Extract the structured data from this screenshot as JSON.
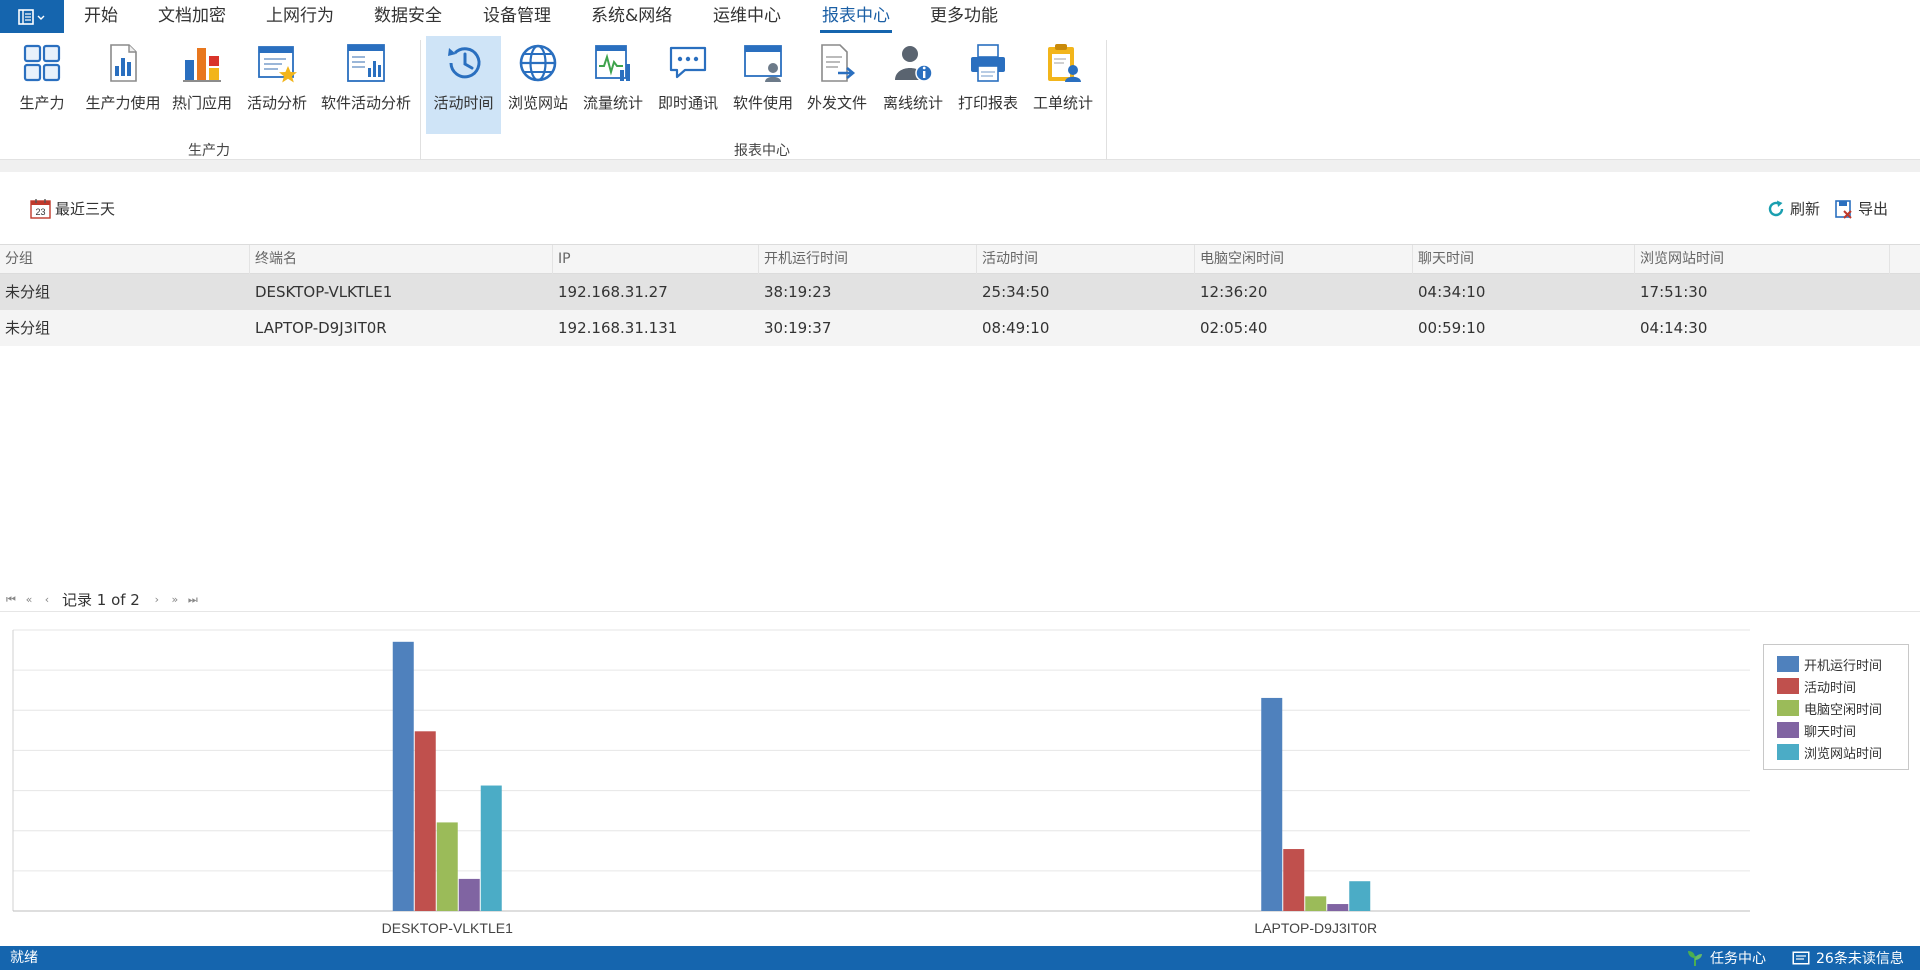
{
  "menu": {
    "tabs": [
      {
        "label": "开始"
      },
      {
        "label": "文档加密"
      },
      {
        "label": "上网行为"
      },
      {
        "label": "数据安全"
      },
      {
        "label": "设备管理"
      },
      {
        "label": "系统&网络"
      },
      {
        "label": "运维中心"
      },
      {
        "label": "报表中心"
      },
      {
        "label": "更多功能"
      }
    ],
    "active_tab": "报表中心"
  },
  "ribbon": {
    "groups": [
      {
        "label": "生产力"
      },
      {
        "label": "报表中心"
      }
    ],
    "buttons": [
      {
        "label": "生产力",
        "icon": "productivity-grid-icon"
      },
      {
        "label": "生产力使用",
        "icon": "productivity-usage-icon"
      },
      {
        "label": "热门应用",
        "icon": "popular-apps-icon"
      },
      {
        "label": "活动分析",
        "icon": "activity-analysis-icon"
      },
      {
        "label": "软件活动分析",
        "icon": "software-activity-icon"
      },
      {
        "label": "活动时间",
        "icon": "activity-time-icon"
      },
      {
        "label": "浏览网站",
        "icon": "globe-icon"
      },
      {
        "label": "流量统计",
        "icon": "traffic-stats-icon"
      },
      {
        "label": "即时通讯",
        "icon": "chat-icon"
      },
      {
        "label": "软件使用",
        "icon": "software-usage-icon"
      },
      {
        "label": "外发文件",
        "icon": "outgoing-file-icon"
      },
      {
        "label": "离线统计",
        "icon": "offline-user-icon"
      },
      {
        "label": "打印报表",
        "icon": "printer-icon"
      },
      {
        "label": "工单统计",
        "icon": "work-order-icon"
      }
    ],
    "active_button": "活动时间"
  },
  "toolbar": {
    "date_range": "最近三天",
    "calendar_day": "23",
    "refresh_label": "刷新",
    "export_label": "导出"
  },
  "table": {
    "columns": [
      "分组",
      "终端名",
      "IP",
      "开机运行时间",
      "活动时间",
      "电脑空闲时间",
      "聊天时间",
      "浏览网站时间"
    ],
    "rows": [
      [
        "未分组",
        "DESKTOP-VLKTLE1",
        "192.168.31.27",
        "38:19:23",
        "25:34:50",
        "12:36:20",
        "04:34:10",
        "17:51:30"
      ],
      [
        "未分组",
        "LAPTOP-D9J3IT0R",
        "192.168.31.131",
        "30:19:37",
        "08:49:10",
        "02:05:40",
        "00:59:10",
        "04:14:30"
      ]
    ]
  },
  "pager": {
    "text": "记录 1 of 2"
  },
  "chart_data": {
    "type": "bar",
    "categories": [
      "DESKTOP-VLKTLE1",
      "LAPTOP-D9J3IT0R"
    ],
    "series": [
      {
        "name": "开机运行时间",
        "color": "#4f81bd",
        "values": [
          38.32,
          30.33
        ]
      },
      {
        "name": "活动时间",
        "color": "#c0504d",
        "values": [
          25.58,
          8.82
        ]
      },
      {
        "name": "电脑空闲时间",
        "color": "#9bbb59",
        "values": [
          12.61,
          2.09
        ]
      },
      {
        "name": "聊天时间",
        "color": "#8064a2",
        "values": [
          4.57,
          0.99
        ]
      },
      {
        "name": "浏览网站时间",
        "color": "#4bacc6",
        "values": [
          17.86,
          4.24
        ]
      }
    ],
    "ylim": [
      0,
      40
    ],
    "grid": true,
    "legend_position": "top-right",
    "xlabel": "",
    "ylabel": ""
  },
  "status": {
    "ready": "就绪",
    "task_center": "任务中心",
    "messages": "26条未读信息"
  }
}
